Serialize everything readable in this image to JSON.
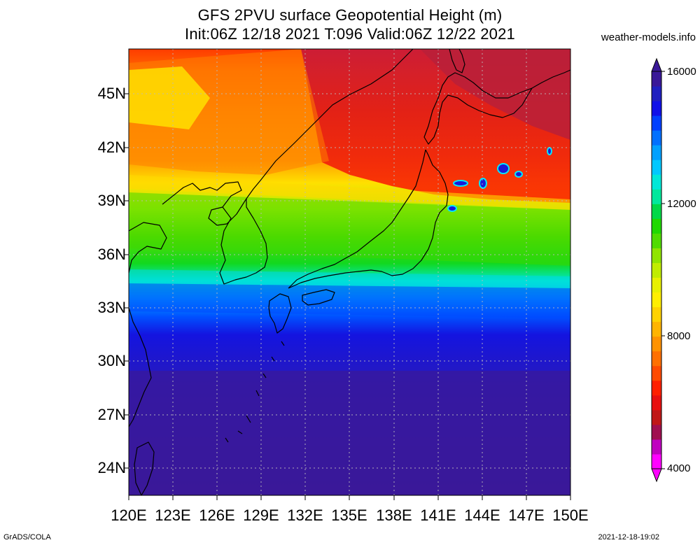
{
  "title": {
    "line1": "GFS 2PVU surface Geopotential Height (m)",
    "line2": "Init:06Z 12/18 2021 T:096 Valid:06Z 12/22 2021"
  },
  "site": "weather-models.info",
  "latitude_labels": [
    "45N",
    "42N",
    "39N",
    "36N",
    "33N",
    "30N",
    "27N",
    "24N"
  ],
  "longitude_labels": [
    "120E",
    "123E",
    "126E",
    "129E",
    "132E",
    "135E",
    "138E",
    "141E",
    "144E",
    "147E",
    "150E"
  ],
  "colorbar": {
    "labels": [
      "16000",
      "12000",
      "8000",
      "4000"
    ],
    "colors": [
      "#ff00ff",
      "#c000c0",
      "#a01050",
      "#c01818",
      "#e81010",
      "#ff2000",
      "#ff4a00",
      "#ff7000",
      "#ff9200",
      "#ffb400",
      "#ffd200",
      "#ffee00",
      "#e8f000",
      "#c0ec00",
      "#90e400",
      "#50dc00",
      "#20d800",
      "#00d848",
      "#00e89c",
      "#00e8d8",
      "#00c8ff",
      "#00a0ff",
      "#0070ff",
      "#0040ff",
      "#1010e8",
      "#2020c0",
      "#3a1898"
    ]
  },
  "footer": {
    "left": "GrADS/COLA",
    "right": "2021-12-18-19:02"
  }
}
